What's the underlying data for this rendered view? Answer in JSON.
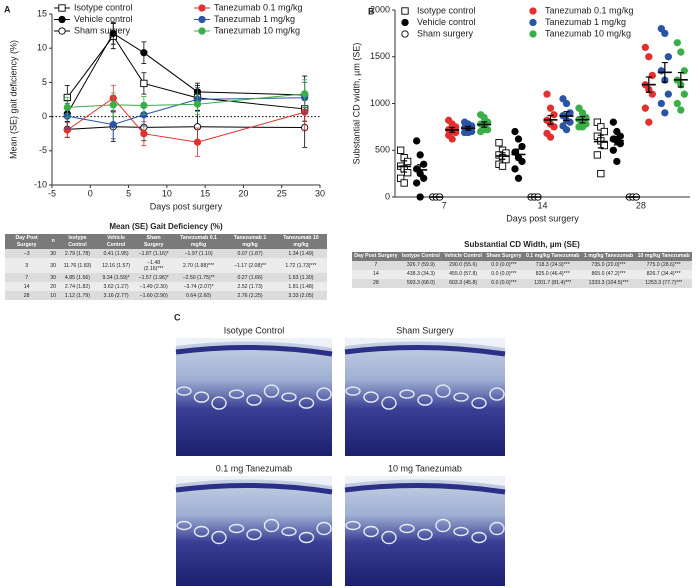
{
  "panel_labels": [
    "A",
    "B",
    "C"
  ],
  "chart_data": [
    {
      "type": "line",
      "xlabel": "Days post surgery",
      "ylabel": "Mean (SE) gait deficiency (%)",
      "x": [
        -3,
        3,
        7,
        14,
        28
      ],
      "xlim": [
        -5,
        30
      ],
      "xticks": [
        -5,
        0,
        5,
        10,
        15,
        20,
        25,
        30
      ],
      "ylim": [
        -10,
        15
      ],
      "yticks": [
        -10,
        -5,
        0,
        5,
        10,
        15
      ],
      "hline": 0,
      "legend": "top",
      "series": [
        {
          "name": "Isotype control",
          "color": "#000000",
          "marker": "square-open",
          "values": [
            2.79,
            11.76,
            4.85,
            2.74,
            1.12
          ],
          "errors": [
            1.78,
            1.83,
            1.56,
            1.82,
            1.79
          ]
        },
        {
          "name": "Vehicle control",
          "color": "#000000",
          "marker": "circle",
          "values": [
            0.41,
            12.16,
            9.34,
            3.62,
            3.16
          ],
          "errors": [
            1.95,
            1.57,
            1.59,
            1.27,
            2.77
          ]
        },
        {
          "name": "Sham surgery",
          "color": "#000000",
          "marker": "circle-open",
          "values": [
            -1.87,
            -1.48,
            -1.57,
            -1.49,
            -1.6
          ],
          "errors": [
            1.16,
            2.16,
            1.96,
            2.3,
            2.9
          ]
        },
        {
          "name": "Tanezumab 0.1 mg/kg",
          "color": "#e2302f",
          "marker": "circle",
          "values": [
            -1.97,
            2.7,
            -2.5,
            -3.74,
            0.64
          ],
          "errors": [
            1.1,
            1.88,
            1.75,
            2.07,
            2.6
          ]
        },
        {
          "name": "Tanezumab 1 mg/kg",
          "color": "#2a55a5",
          "marker": "circle",
          "values": [
            0.07,
            -1.17,
            0.27,
            2.52,
            2.76
          ],
          "errors": [
            1.87,
            2.08,
            1.66,
            1.73,
            2.25
          ]
        },
        {
          "name": "Tanezumab 10 mg/kg",
          "color": "#3aae48",
          "marker": "circle",
          "values": [
            1.34,
            1.72,
            1.63,
            1.81,
            3.33
          ],
          "errors": [
            1.49,
            1.73,
            1.3,
            1.48,
            2.05
          ]
        }
      ]
    },
    {
      "type": "scatter",
      "xlabel": "Days post surgery",
      "ylabel": "Substantial CD width, µm (SE)",
      "categories": [
        "7",
        "14",
        "28"
      ],
      "ylim": [
        0,
        2000
      ],
      "yticks": [
        0,
        500,
        1000,
        1500,
        2000
      ],
      "legend": "top-left",
      "series": [
        {
          "name": "Isotype control",
          "color": "#000000",
          "marker": "square-open",
          "means": [
            326.7,
            438.3,
            593.3
          ],
          "errors": [
            59.9,
            34.3,
            68.0
          ],
          "points": [
            [
              500,
              420,
              380,
              330,
              300,
              260,
              200,
              150
            ],
            [
              580,
              500,
              470,
              450,
              420,
              400,
              350,
              330
            ],
            [
              800,
              750,
              700,
              650,
              600,
              550,
              450,
              250
            ]
          ]
        },
        {
          "name": "Vehicle control",
          "color": "#000000",
          "marker": "circle",
          "means": [
            290.0,
            455.0,
            603.3
          ],
          "errors": [
            55.6,
            57.8,
            45.8
          ],
          "points": [
            [
              600,
              450,
              350,
              300,
              250,
              200,
              150,
              0
            ],
            [
              700,
              620,
              540,
              480,
              420,
              380,
              300,
              200
            ],
            [
              800,
              700,
              650,
              620,
              600,
              570,
              500,
              380
            ]
          ]
        },
        {
          "name": "Sham surgery",
          "color": "#000000",
          "marker": "circle-open",
          "means": [
            0.0,
            0.0,
            0.0
          ],
          "errors": [
            0.0,
            0.0,
            0.0
          ],
          "points": [
            [
              0,
              0,
              0
            ],
            [
              0,
              0,
              0
            ],
            [
              0,
              0,
              0
            ]
          ]
        },
        {
          "name": "Tanezumab 0.1 mg/kg",
          "color": "#e2302f",
          "marker": "circle",
          "means": [
            718.3,
            825.0,
            1201.7
          ],
          "errors": [
            24.9,
            46.4,
            81.4
          ],
          "points": [
            [
              820,
              780,
              750,
              720,
              700,
              690,
              660,
              620
            ],
            [
              1100,
              950,
              880,
              820,
              780,
              750,
              680,
              640
            ],
            [
              1600,
              1500,
              1300,
              1200,
              1150,
              1100,
              950,
              800
            ]
          ]
        },
        {
          "name": "Tanezumab 1 mg/kg",
          "color": "#2a55a5",
          "marker": "circle",
          "means": [
            735.0,
            865.0,
            1333.3
          ],
          "errors": [
            20.0,
            47.2,
            104.5
          ],
          "points": [
            [
              800,
              780,
              760,
              740,
              720,
              700,
              690,
              690
            ],
            [
              1050,
              1000,
              900,
              870,
              820,
              800,
              760,
              720
            ],
            [
              1800,
              1750,
              1500,
              1350,
              1250,
              1100,
              1000,
              900
            ]
          ]
        },
        {
          "name": "Tanezumab 10 mg/kg",
          "color": "#3aae48",
          "marker": "circle",
          "means": [
            775.0,
            826.7,
            1253.3
          ],
          "errors": [
            28.6,
            34.4,
            77.7
          ],
          "points": [
            [
              880,
              850,
              800,
              780,
              750,
              720,
              700,
              720
            ],
            [
              950,
              900,
              850,
              830,
              800,
              780,
              750,
              750
            ],
            [
              1650,
              1550,
              1350,
              1250,
              1200,
              1100,
              1000,
              930
            ]
          ]
        }
      ]
    }
  ],
  "tables": [
    {
      "title": "Mean (SE) Gait Deficiency (%)",
      "header": [
        "Day Post Surgery",
        "n",
        "Isotype Control",
        "Vehicle Control",
        "Sham Surgery",
        "Tanezumab 0.1 mg/kg",
        "Tanezumab 1 mg/kg",
        "Tanezumab 10 mg/kg"
      ],
      "rows": [
        [
          "−3",
          "30",
          "2.79 (1.78)",
          "0.41 (1.95)",
          "−1.87 (1.16)*",
          "−1.97 (1.10)",
          "0.07 (1.87)",
          "1.34 (1.49)"
        ],
        [
          "3",
          "30",
          "11.76 (1.83)",
          "12.16 (1.57)",
          "−1.48 (2.16)***",
          "2.70 (1.88)***",
          "−1.17 (2.08)**",
          "1.72 (1.73)***"
        ],
        [
          "7",
          "30",
          "4.85 (1.56)",
          "9.34 (1.59)*",
          "−1.57 (1.96)*",
          "−2.50 (1.75)**",
          "0.27 (1.66)",
          "1.63 (1.30)"
        ],
        [
          "14",
          "20",
          "2.74 (1.82)",
          "3.62 (1.27)",
          "−1.49 (2.30)",
          "−3.74 (2.07)*",
          "2.52 (1.73)",
          "1.81 (1.48)"
        ],
        [
          "28",
          "10",
          "1.12 (1.79)",
          "3.16 (2.77)",
          "−1.60 (2.90)",
          "0.64 (2.60)",
          "2.76 (2.25)",
          "3.33 (2.05)"
        ]
      ]
    },
    {
      "title": "Substantial CD Width, µm (SE)",
      "header": [
        "Day Post Surgery",
        "Isotype Control",
        "Vehicle Control",
        "Sham Surgery",
        "0.1 mg/kg Tanezumab",
        "1 mg/kg Tanezumab",
        "10 mg/kg Tanezumab"
      ],
      "rows": [
        [
          "7",
          "326.7 (59.9)",
          "290.0 (55.6)",
          "0.0 (0.0)***",
          "718.3 (24.9)***",
          "735.0 (20.0)***",
          "775.0 (28.6)***"
        ],
        [
          "14",
          "438.3 (34.3)",
          "455.0 (57.8)",
          "0.0 (0.0)***",
          "825.0 (46.4)***",
          "865.0 (47.2)***",
          "826.7 (34.4)***"
        ],
        [
          "28",
          "593.3 (68.0)",
          "603.3 (45.8)",
          "0.0 (0.0)***",
          "1201.7 (81.4)***",
          "1333.3 (104.5)***",
          "1253.3 (77.7)***"
        ]
      ]
    }
  ],
  "micrographs": [
    "Isotype Control",
    "Sham Surgery",
    "0.1 mg Tanezumab",
    "10 mg Tanezumab"
  ]
}
